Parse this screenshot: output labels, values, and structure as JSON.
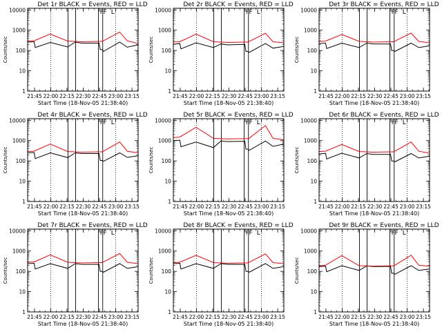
{
  "colors": {
    "background": "#ffffff",
    "axes": "#000000",
    "events_series": "#000000",
    "lld_series": "#ff0000"
  },
  "shared": {
    "ylabel": "Counts/sec",
    "xlabel": "Start Time (18-Nov-05 21:38:40)",
    "x_tick_labels": [
      "21:45",
      "22:00",
      "22:15",
      "22:30",
      "22:45",
      "23:00",
      "23:15"
    ],
    "x_ticks_min_since_start": [
      6.33,
      21.33,
      36.33,
      51.33,
      66.33,
      81.33,
      96.33
    ],
    "y_tick_labels": [
      "1",
      "10",
      "100",
      "1000",
      "10000"
    ],
    "y_ticks": [
      1,
      10,
      100,
      1000,
      10000
    ],
    "ylim": [
      1,
      12000
    ],
    "xlim": [
      0,
      102
    ],
    "yscale": "log",
    "dotted_lines": [
      21.33,
      81.33
    ],
    "solid_lines": [
      37.33,
      44.33,
      65.33,
      69.33
    ],
    "legend_markers": [
      "F",
      "F",
      "L"
    ],
    "legend_marker_x": [
      66.8,
      69.8,
      77.0
    ]
  },
  "chart_data": [
    {
      "type": "line",
      "title": "Det 1r BLACK = Events, RED = LLD",
      "series": [
        {
          "name": "Events",
          "color": "#000000",
          "x": [
            0,
            6,
            7,
            21,
            37,
            44,
            50,
            66,
            67,
            69,
            70,
            85,
            92,
            102
          ],
          "y": [
            260,
            270,
            140,
            250,
            150,
            260,
            230,
            230,
            110,
            110,
            90,
            260,
            145,
            190
          ]
        },
        {
          "name": "LLD",
          "color": "#ff0000",
          "x": [
            0,
            6,
            21,
            37,
            44,
            50,
            66,
            69,
            70,
            85,
            92,
            102
          ],
          "y": [
            290,
            300,
            650,
            290,
            280,
            270,
            280,
            280,
            300,
            800,
            300,
            220
          ]
        }
      ]
    },
    {
      "type": "line",
      "title": "Det 2r BLACK = Events, RED = LLD",
      "series": [
        {
          "name": "Events",
          "color": "#000000",
          "x": [
            0,
            6,
            7,
            21,
            37,
            44,
            50,
            66,
            67,
            69,
            70,
            85,
            92,
            102
          ],
          "y": [
            200,
            220,
            120,
            240,
            140,
            210,
            190,
            200,
            90,
            90,
            80,
            220,
            130,
            160
          ]
        },
        {
          "name": "LLD",
          "color": "#ff0000",
          "x": [
            0,
            6,
            21,
            37,
            44,
            50,
            66,
            69,
            70,
            85,
            92,
            102
          ],
          "y": [
            260,
            270,
            640,
            270,
            260,
            250,
            260,
            260,
            280,
            700,
            270,
            240
          ]
        }
      ]
    },
    {
      "type": "line",
      "title": "Det 3r BLACK = Events, RED = LLD",
      "series": [
        {
          "name": "Events",
          "color": "#000000",
          "x": [
            0,
            6,
            7,
            21,
            37,
            44,
            50,
            66,
            67,
            69,
            70,
            85,
            92,
            102
          ],
          "y": [
            220,
            230,
            125,
            230,
            140,
            230,
            210,
            210,
            100,
            100,
            90,
            230,
            140,
            170
          ]
        },
        {
          "name": "LLD",
          "color": "#ff0000",
          "x": [
            0,
            6,
            21,
            37,
            44,
            50,
            66,
            69,
            70,
            85,
            92,
            102
          ],
          "y": [
            280,
            290,
            620,
            280,
            270,
            260,
            270,
            270,
            290,
            720,
            280,
            240
          ]
        }
      ]
    },
    {
      "type": "line",
      "title": "Det 4r BLACK = Events, RED = LLD",
      "series": [
        {
          "name": "Events",
          "color": "#000000",
          "x": [
            0,
            6,
            7,
            21,
            37,
            44,
            50,
            66,
            67,
            69,
            70,
            85,
            92,
            102
          ],
          "y": [
            250,
            260,
            130,
            250,
            145,
            250,
            230,
            230,
            105,
            105,
            95,
            250,
            150,
            180
          ]
        },
        {
          "name": "LLD",
          "color": "#ff0000",
          "x": [
            0,
            6,
            21,
            37,
            44,
            50,
            66,
            69,
            70,
            85,
            92,
            102
          ],
          "y": [
            290,
            300,
            680,
            290,
            280,
            270,
            280,
            280,
            300,
            850,
            300,
            250
          ]
        }
      ]
    },
    {
      "type": "line",
      "title": "Det 5r BLACK = Events, RED = LLD",
      "series": [
        {
          "name": "Events",
          "color": "#000000",
          "x": [
            0,
            6,
            7,
            21,
            37,
            44,
            50,
            66,
            67,
            69,
            70,
            85,
            92,
            102
          ],
          "y": [
            1000,
            1050,
            500,
            850,
            450,
            950,
            900,
            920,
            380,
            380,
            330,
            950,
            520,
            680
          ]
        },
        {
          "name": "LLD",
          "color": "#ff0000",
          "x": [
            0,
            6,
            21,
            37,
            44,
            50,
            66,
            69,
            70,
            85,
            92,
            102
          ],
          "y": [
            1400,
            1500,
            4500,
            1300,
            1250,
            1200,
            1250,
            1250,
            1300,
            5500,
            1300,
            1100
          ]
        }
      ]
    },
    {
      "type": "line",
      "title": "Det 6r BLACK = Events, RED = LLD",
      "series": [
        {
          "name": "Events",
          "color": "#000000",
          "x": [
            0,
            6,
            7,
            21,
            37,
            44,
            50,
            66,
            67,
            69,
            70,
            85,
            92,
            102
          ],
          "y": [
            220,
            235,
            125,
            240,
            140,
            230,
            210,
            210,
            100,
            100,
            90,
            230,
            140,
            170
          ]
        },
        {
          "name": "LLD",
          "color": "#ff0000",
          "x": [
            0,
            6,
            21,
            37,
            44,
            50,
            66,
            69,
            70,
            85,
            92,
            102
          ],
          "y": [
            290,
            300,
            650,
            290,
            280,
            270,
            280,
            280,
            300,
            850,
            300,
            240
          ]
        }
      ]
    },
    {
      "type": "line",
      "title": "Det 7r BLACK = Events, RED = LLD",
      "series": [
        {
          "name": "Events",
          "color": "#000000",
          "x": [
            0,
            6,
            7,
            21,
            37,
            44,
            50,
            66,
            67,
            69,
            70,
            85,
            92,
            102
          ],
          "y": [
            240,
            250,
            130,
            240,
            140,
            240,
            220,
            220,
            100,
            100,
            90,
            240,
            140,
            170
          ]
        },
        {
          "name": "LLD",
          "color": "#ff0000",
          "x": [
            0,
            6,
            21,
            37,
            44,
            50,
            66,
            69,
            70,
            85,
            92,
            102
          ],
          "y": [
            280,
            290,
            650,
            280,
            270,
            260,
            270,
            270,
            290,
            750,
            280,
            240
          ]
        }
      ]
    },
    {
      "type": "line",
      "title": "Det 8r BLACK = Events, RED = LLD",
      "series": [
        {
          "name": "Events",
          "color": "#000000",
          "x": [
            0,
            6,
            7,
            21,
            37,
            44,
            50,
            66,
            67,
            69,
            70,
            85,
            92,
            102
          ],
          "y": [
            240,
            250,
            130,
            240,
            140,
            240,
            220,
            220,
            100,
            100,
            90,
            240,
            140,
            170
          ]
        },
        {
          "name": "LLD",
          "color": "#ff0000",
          "x": [
            0,
            6,
            21,
            37,
            44,
            50,
            66,
            69,
            70,
            85,
            92,
            102
          ],
          "y": [
            270,
            280,
            620,
            270,
            260,
            250,
            260,
            260,
            280,
            720,
            270,
            240
          ]
        }
      ]
    },
    {
      "type": "line",
      "title": "Det 9r BLACK = Events, RED = LLD",
      "series": [
        {
          "name": "Events",
          "color": "#000000",
          "x": [
            0,
            6,
            7,
            21,
            37,
            44,
            50,
            66,
            67,
            69,
            70,
            85,
            92,
            102
          ],
          "y": [
            170,
            180,
            95,
            190,
            110,
            185,
            170,
            175,
            80,
            80,
            72,
            190,
            110,
            130
          ]
        },
        {
          "name": "LLD",
          "color": "#ff0000",
          "x": [
            0,
            6,
            21,
            37,
            44,
            50,
            66,
            69,
            70,
            85,
            92,
            102
          ],
          "y": [
            190,
            200,
            600,
            190,
            185,
            180,
            185,
            185,
            200,
            620,
            200,
            180
          ]
        }
      ]
    }
  ]
}
